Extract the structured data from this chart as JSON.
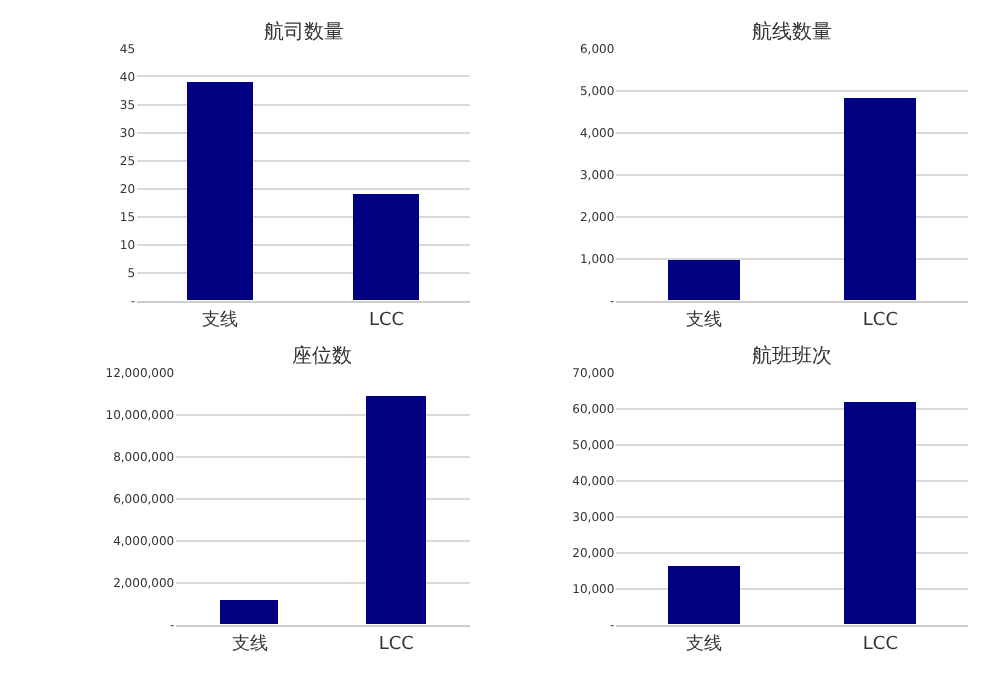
{
  "chart_data": [
    {
      "type": "bar",
      "title": "航司数量",
      "categories": [
        "支线",
        "LCC"
      ],
      "values": [
        39,
        19
      ],
      "color": "#000080",
      "ylim": [
        0,
        45
      ],
      "yticks": [
        {
          "value": 0,
          "label": "-"
        },
        5,
        10,
        15,
        20,
        25,
        30,
        35,
        40,
        45
      ],
      "grid": "y"
    },
    {
      "type": "bar",
      "title": "航线数量",
      "categories": [
        "支线",
        "LCC"
      ],
      "values": [
        950,
        4800
      ],
      "color": "#000080",
      "ylim": [
        0,
        6000
      ],
      "yticks": [
        {
          "value": 0,
          "label": "-"
        },
        {
          "value": 1000,
          "label": "1,000"
        },
        {
          "value": 2000,
          "label": "2,000"
        },
        {
          "value": 3000,
          "label": "3,000"
        },
        {
          "value": 4000,
          "label": "4,000"
        },
        {
          "value": 5000,
          "label": "5,000"
        },
        {
          "value": 6000,
          "label": "6,000"
        }
      ],
      "grid": "y"
    },
    {
      "type": "bar",
      "title": "座位数",
      "categories": [
        "支线",
        "LCC"
      ],
      "values": [
        1200000,
        10900000
      ],
      "color": "#000080",
      "ylim": [
        0,
        12000000
      ],
      "yticks": [
        {
          "value": 0,
          "label": "-"
        },
        {
          "value": 2000000,
          "label": "2,000,000"
        },
        {
          "value": 4000000,
          "label": "4,000,000"
        },
        {
          "value": 6000000,
          "label": "6,000,000"
        },
        {
          "value": 8000000,
          "label": "8,000,000"
        },
        {
          "value": 10000000,
          "label": "10,000,000"
        },
        {
          "value": 12000000,
          "label": "12,000,000"
        }
      ],
      "grid": "y"
    },
    {
      "type": "bar",
      "title": "航班班次",
      "categories": [
        "支线",
        "LCC"
      ],
      "values": [
        16500,
        61500
      ],
      "color": "#000080",
      "ylim": [
        0,
        70000
      ],
      "yticks": [
        {
          "value": 0,
          "label": "-"
        },
        {
          "value": 10000,
          "label": "10,000"
        },
        {
          "value": 20000,
          "label": "20,000"
        },
        {
          "value": 30000,
          "label": "30,000"
        },
        {
          "value": 40000,
          "label": "40,000"
        },
        {
          "value": 50000,
          "label": "50,000"
        },
        {
          "value": 60000,
          "label": "60,000"
        },
        {
          "value": 70000,
          "label": "70,000"
        }
      ],
      "grid": "y"
    }
  ]
}
